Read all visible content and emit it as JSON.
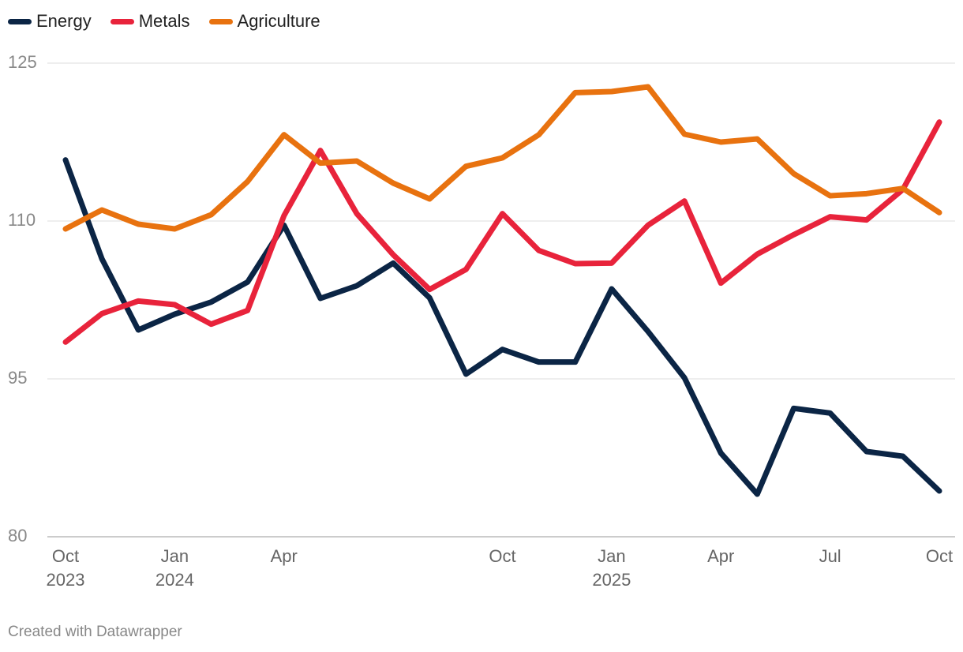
{
  "chart_data": {
    "type": "line",
    "categories": [
      "Oct 2023",
      null,
      null,
      "Jan 2024",
      null,
      null,
      "Apr",
      null,
      null,
      null,
      null,
      null,
      "Oct",
      null,
      null,
      "Jan 2025",
      null,
      null,
      "Apr",
      null,
      null,
      "Jul",
      null,
      null,
      "Oct"
    ],
    "series": [
      {
        "name": "Energy",
        "color": "#0b2545",
        "values": [
          115.8,
          106.4,
          99.65,
          101.15,
          102.3,
          104.2,
          109.6,
          102.65,
          103.85,
          106.0,
          102.7,
          95.45,
          97.8,
          96.6,
          96.6,
          103.55,
          99.5,
          95.1,
          87.95,
          84.05,
          92.2,
          91.75,
          88.1,
          87.65,
          84.35
        ]
      },
      {
        "name": "Metals",
        "color": "#e8233b",
        "values": [
          98.5,
          101.2,
          102.4,
          102.05,
          100.2,
          101.5,
          110.5,
          116.7,
          110.7,
          106.8,
          103.5,
          105.4,
          110.7,
          107.2,
          105.95,
          106.0,
          109.6,
          111.9,
          104.1,
          106.85,
          108.7,
          110.4,
          110.1,
          113.0,
          119.4
        ]
      },
      {
        "name": "Agriculture",
        "color": "#e8720f",
        "values": [
          109.25,
          111.05,
          109.7,
          109.25,
          110.6,
          113.75,
          118.2,
          115.5,
          115.7,
          113.6,
          112.1,
          115.2,
          116.0,
          118.2,
          122.2,
          122.3,
          122.75,
          118.25,
          117.5,
          117.8,
          114.5,
          112.4,
          112.6,
          113.1,
          110.8
        ]
      }
    ],
    "ylim": [
      80,
      125
    ],
    "yticks": [
      80,
      95,
      110,
      125
    ],
    "grid": true,
    "source": "Created with Datawrapper"
  }
}
